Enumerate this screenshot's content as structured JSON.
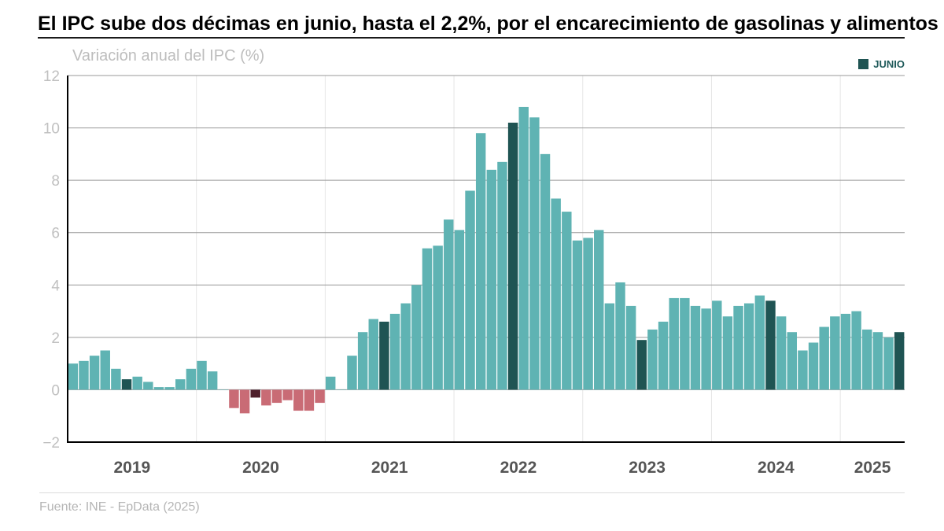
{
  "header": {
    "title": "El IPC sube dos décimas en junio, hasta el 2,2%, por el encarecimiento de gasolinas y alimentos",
    "subtitle": "Variación anual del IPC (%)"
  },
  "legend": {
    "label": "JUNIO",
    "color": "#1f5453"
  },
  "footer": {
    "source": "Fuente: INE - EpData (2025)"
  },
  "colors": {
    "positive": "#5fb3b3",
    "positive_highlight": "#1f5453",
    "negative": "#c96b75",
    "negative_highlight": "#4e1f2b",
    "grid": "#9a9a9a",
    "axis": "#000000",
    "tick_text": "#c0c0c0",
    "year_text": "#555555"
  },
  "chart_data": {
    "type": "bar",
    "title": "",
    "ylabel": "Variación anual del IPC (%)",
    "xlabel": "",
    "ylim": [
      -2,
      12
    ],
    "yticks": [
      -2,
      0,
      2,
      4,
      6,
      8,
      10,
      12
    ],
    "ytick_labels": [
      "−2",
      "0",
      "2",
      "4",
      "6",
      "8",
      "10",
      "12"
    ],
    "grid": true,
    "legend_position": "top-right",
    "start": "2019-01",
    "year_labels": [
      "2019",
      "2020",
      "2021",
      "2022",
      "2023",
      "2024",
      "2025"
    ],
    "highlight_month": 6,
    "series": [
      {
        "values": [
          1.0,
          1.1,
          1.3,
          1.5,
          0.8,
          0.4,
          0.5,
          0.3,
          0.1,
          0.1,
          0.4,
          0.8,
          1.1,
          0.7,
          0.0,
          -0.7,
          -0.9,
          -0.3,
          -0.6,
          -0.5,
          -0.4,
          -0.8,
          -0.8,
          -0.5,
          0.5,
          0.0,
          1.3,
          2.2,
          2.7,
          2.6,
          2.9,
          3.3,
          4.0,
          5.4,
          5.5,
          6.5,
          6.1,
          7.6,
          9.8,
          8.4,
          8.7,
          10.2,
          10.8,
          10.4,
          9.0,
          7.3,
          6.8,
          5.7,
          5.8,
          6.1,
          3.3,
          4.1,
          3.2,
          1.9,
          2.3,
          2.6,
          3.5,
          3.5,
          3.2,
          3.1,
          3.4,
          2.8,
          3.2,
          3.3,
          3.6,
          3.4,
          2.8,
          2.2,
          1.5,
          1.8,
          2.4,
          2.8,
          2.9,
          3.0,
          2.3,
          2.2,
          2.0,
          2.2
        ]
      }
    ]
  }
}
